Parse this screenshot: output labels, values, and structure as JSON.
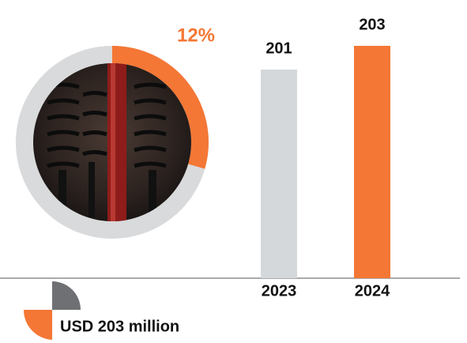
{
  "chart_data": {
    "type": "bar",
    "annotation": "12%",
    "categories": [
      "2023",
      "2024"
    ],
    "values": [
      201,
      203
    ],
    "colors": [
      "#d5d8db",
      "#f47735"
    ],
    "ylim": [
      183.4,
      203
    ],
    "caption": "USD 203 million"
  }
}
